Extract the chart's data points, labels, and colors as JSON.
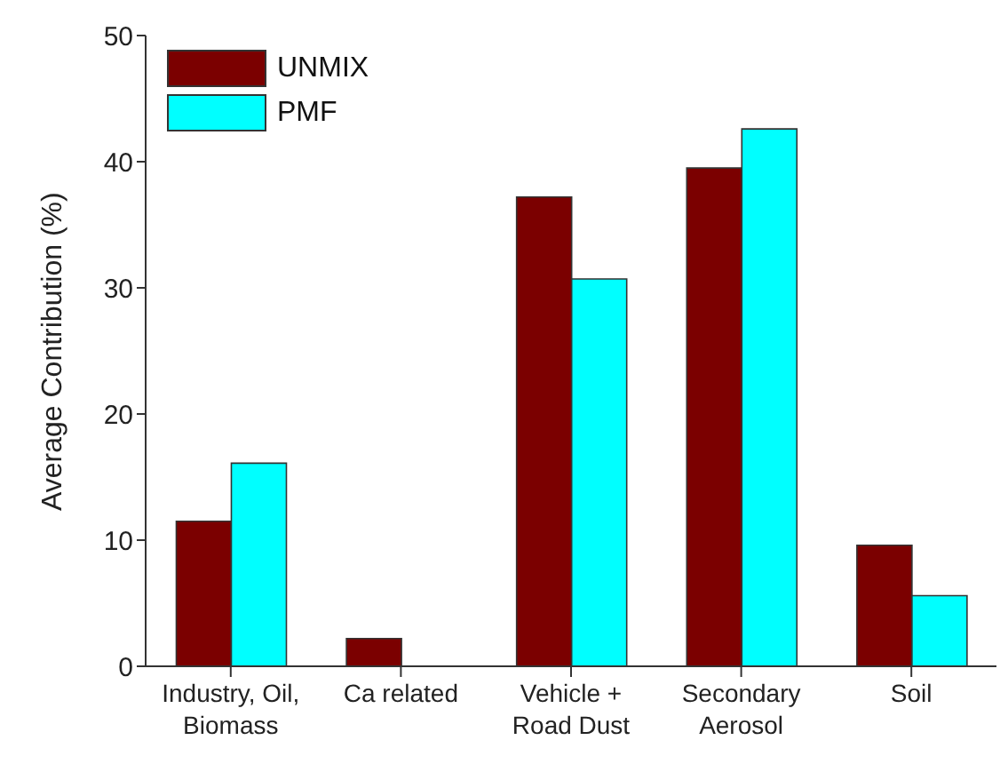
{
  "chart_data": {
    "type": "bar",
    "ylabel": "Average Contribution (%)",
    "categories": [
      "Industry, Oil,\nBiomass",
      "Ca related",
      "Vehicle +\nRoad Dust",
      "Secondary\nAerosol",
      "Soil"
    ],
    "series": [
      {
        "name": "UNMIX",
        "color": "#7b0000",
        "values": [
          11.5,
          2.2,
          37.2,
          39.5,
          9.6
        ]
      },
      {
        "name": "PMF",
        "color": "#00ffff",
        "values": [
          16.1,
          0,
          30.7,
          42.6,
          5.6
        ]
      }
    ],
    "ylim": [
      0,
      50
    ],
    "yticks": [
      0,
      10,
      20,
      30,
      40,
      50
    ],
    "legend": "top left",
    "grid": false
  }
}
